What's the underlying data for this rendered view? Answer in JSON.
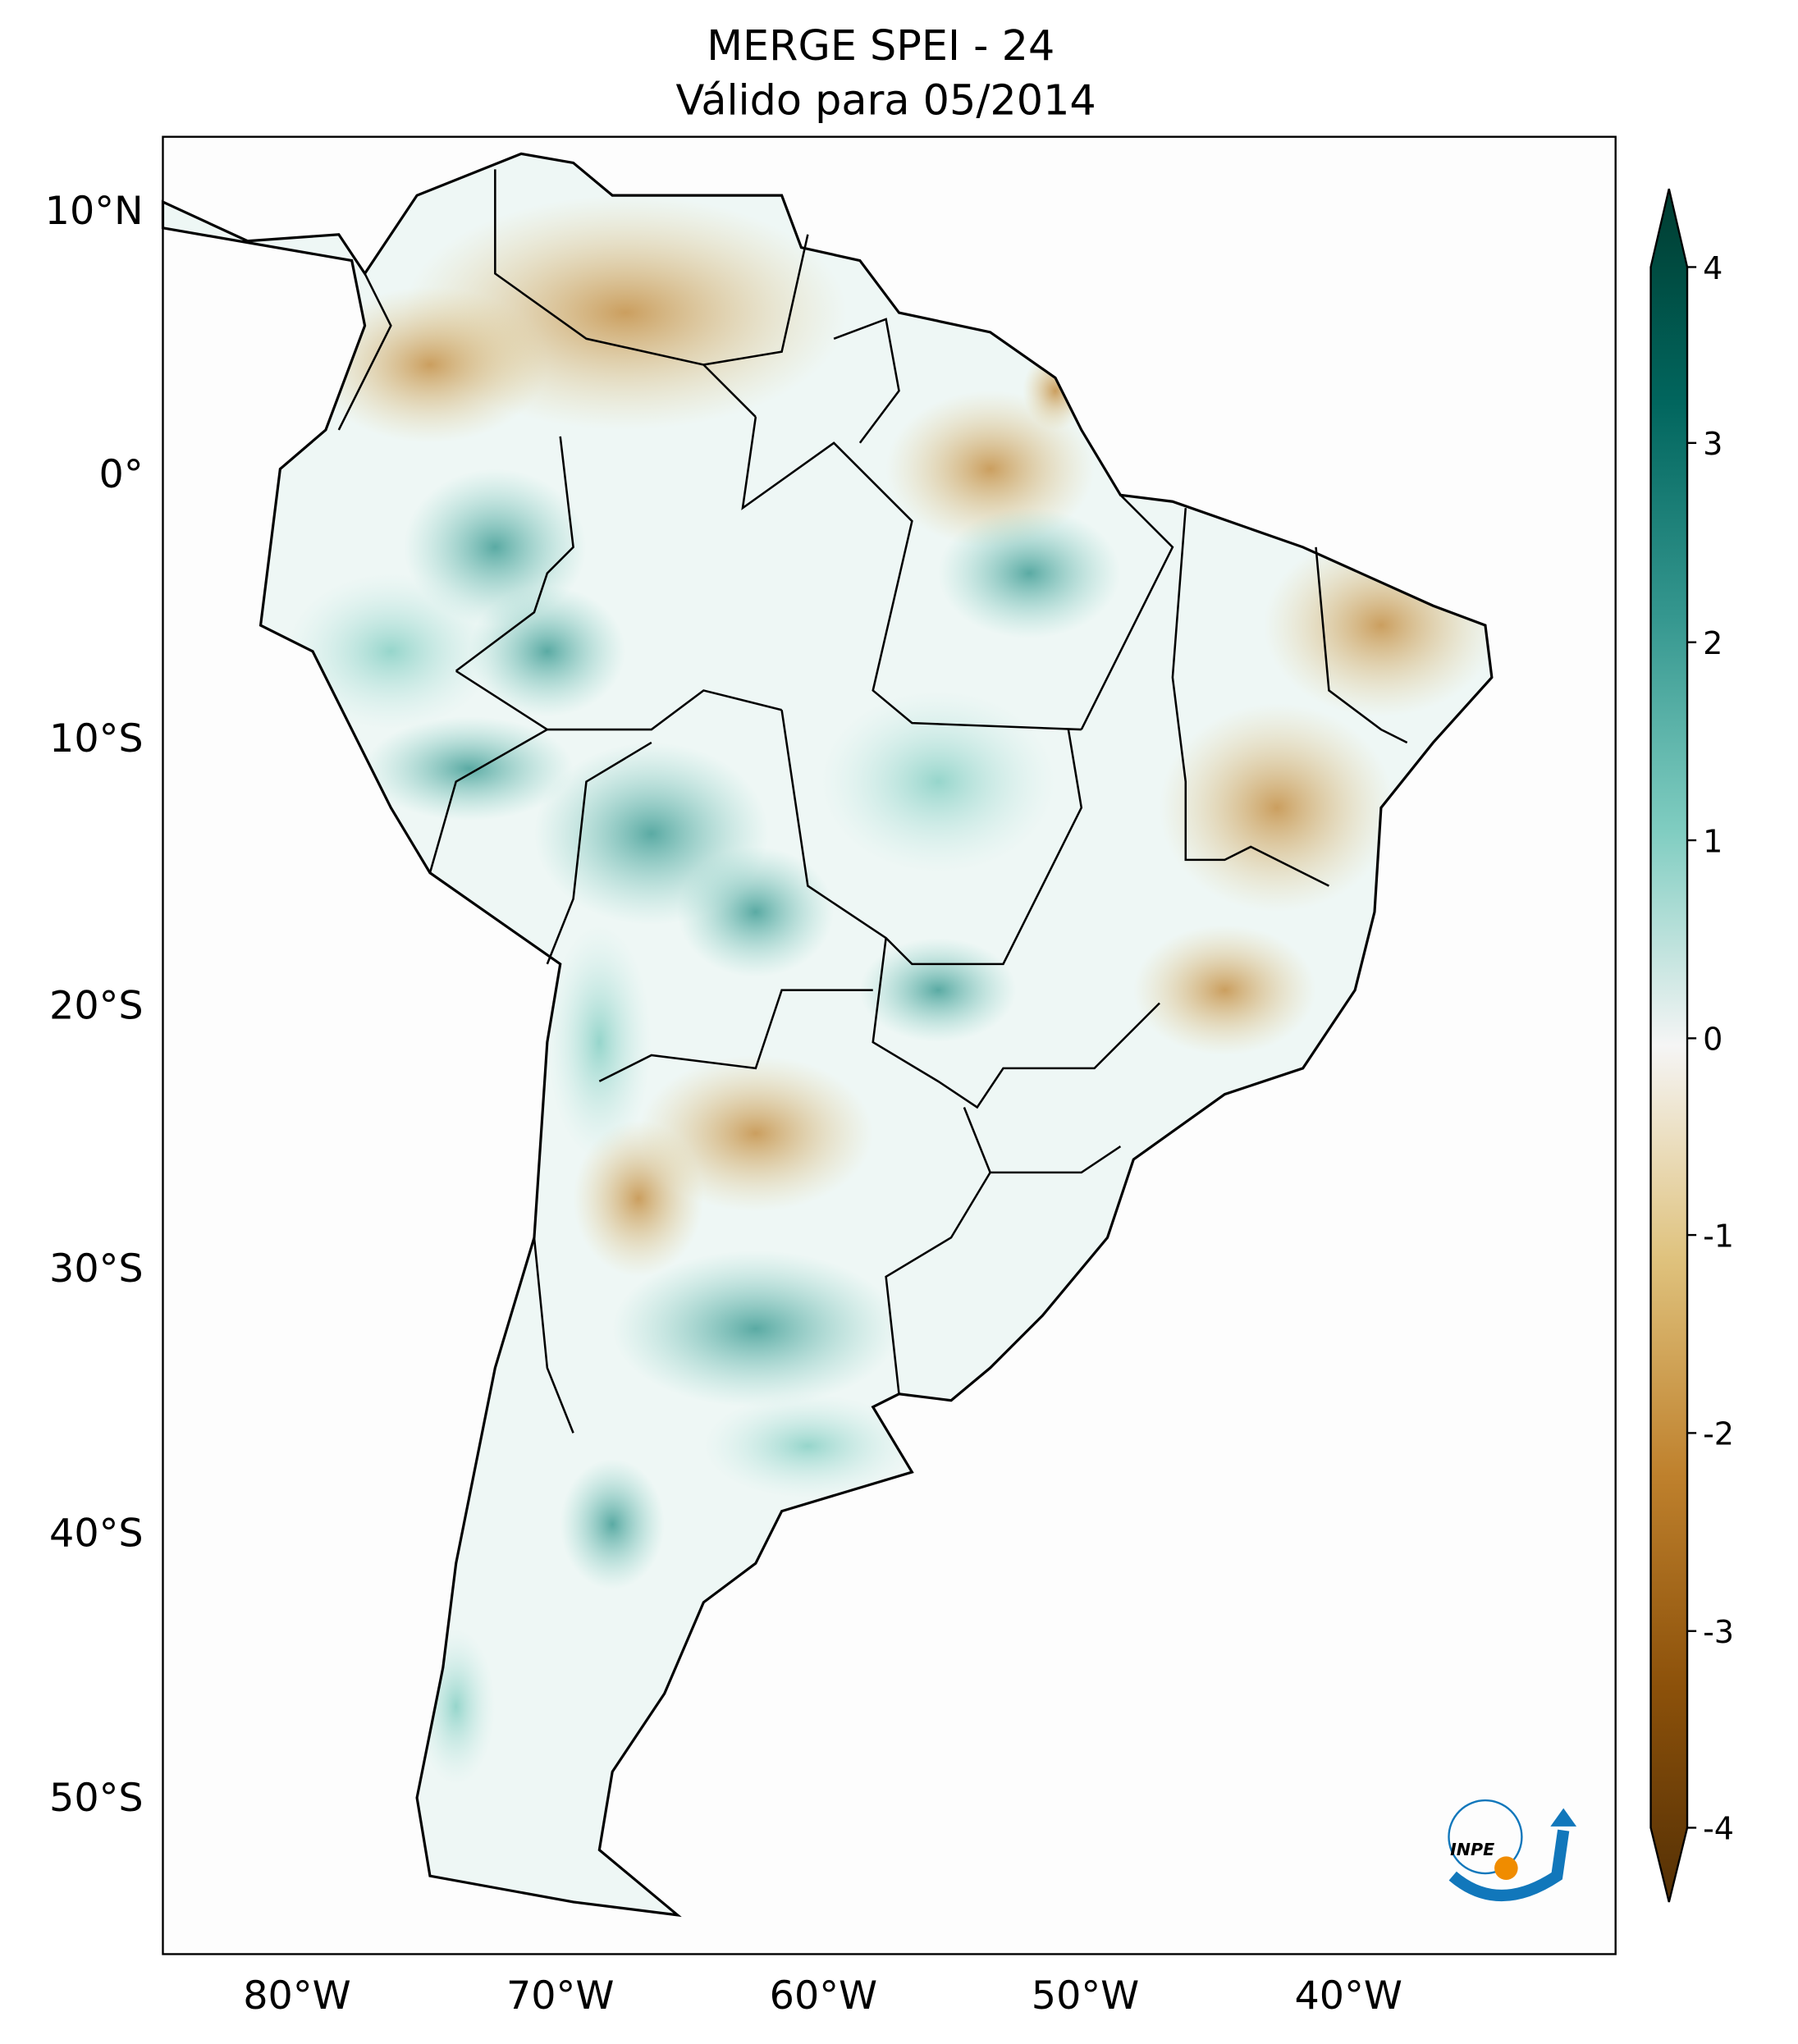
{
  "chart_data": {
    "type": "heatmap",
    "title": "MERGE   SPEI - 24",
    "subtitle": "Válido para 05/2014",
    "lat_ticks": [
      "10°N",
      "0°",
      "10°S",
      "20°S",
      "30°S",
      "40°S",
      "50°S"
    ],
    "lon_ticks": [
      "80°W",
      "70°W",
      "60°W",
      "50°W",
      "40°W"
    ],
    "colorbar": {
      "ticks": [
        "4",
        "3",
        "2",
        "1",
        "0",
        "-1",
        "-2",
        "-3",
        "-4"
      ],
      "range": [
        -4,
        4
      ],
      "extend": "both",
      "colormap": "BrBG",
      "colors": {
        "max": "#003c30",
        "high": "#35978f",
        "mid": "#f5f5f5",
        "low": "#dfc27d",
        "min": "#543005"
      }
    },
    "regions": [
      {
        "area": "northern Venezuela/Colombia",
        "tendency": "dry",
        "approx_value": -1.5
      },
      {
        "area": "western Amazon",
        "tendency": "wet",
        "approx_value": 2.5
      },
      {
        "area": "central Brazil / Bolivia",
        "tendency": "wet",
        "approx_value": 2
      },
      {
        "area": "northeast Brazil",
        "tendency": "dry",
        "approx_value": -1.5
      },
      {
        "area": "northern Argentina (Chaco)",
        "tendency": "dry",
        "approx_value": -1.5
      },
      {
        "area": "central Argentina / Patagonia",
        "tendency": "wet",
        "approx_value": 1.5
      }
    ],
    "logo": "INPE"
  }
}
